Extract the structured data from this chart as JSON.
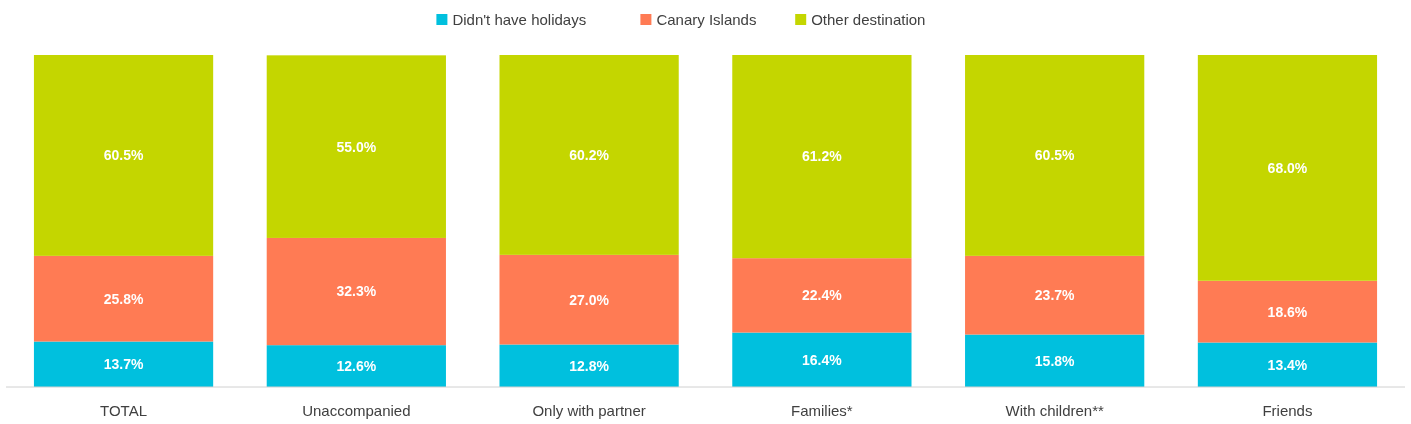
{
  "chart_data": {
    "type": "bar",
    "stacked": true,
    "legend": "top",
    "categories": [
      "TOTAL",
      "Unaccompanied",
      "Only with partner",
      "Families*",
      "With children**",
      "Friends"
    ],
    "series": [
      {
        "name": "Didn't have holidays",
        "color": "#00c0de",
        "values": [
          13.7,
          12.6,
          12.8,
          16.4,
          15.8,
          13.4
        ],
        "value_labels": [
          "13.7%",
          "12.6%",
          "12.8%",
          "16.4%",
          "15.8%",
          "13.4%"
        ]
      },
      {
        "name": "Canary Islands",
        "color": "#ff7b54",
        "values": [
          25.8,
          32.3,
          27.0,
          22.4,
          23.7,
          18.6
        ],
        "value_labels": [
          "25.8%",
          "32.3%",
          "27.0%",
          "22.4%",
          "23.7%",
          "18.6%"
        ]
      },
      {
        "name": "Other destination",
        "color": "#c4d600",
        "values": [
          60.5,
          55.0,
          60.2,
          61.2,
          60.5,
          68.0
        ],
        "value_labels": [
          "60.5%",
          "55.0%",
          "60.2%",
          "61.2%",
          "60.5%",
          "68.0%"
        ]
      }
    ]
  }
}
